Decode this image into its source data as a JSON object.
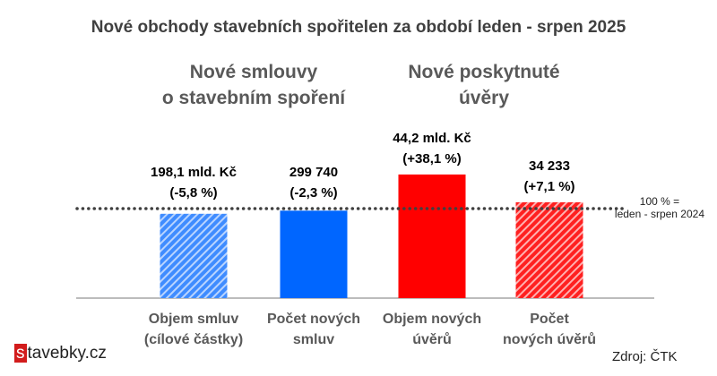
{
  "chart_data": {
    "type": "bar",
    "title": "Nové obchody stavebních spořitelen za období leden - srpen 2025",
    "groups": [
      {
        "label_lines": [
          "Nové smlouvy",
          "o stavebním spoření"
        ]
      },
      {
        "label_lines": [
          "Nové poskytnuté",
          "úvěry"
        ]
      }
    ],
    "categories": [
      [
        "Objem smluv",
        "(cílové částky)"
      ],
      [
        "Počet  nových",
        "smluv"
      ],
      [
        "Objem nových",
        "úvěrů"
      ],
      [
        "Počet",
        "nových úvěrů"
      ]
    ],
    "values_percent_of_reference": [
      94.2,
      97.7,
      138.1,
      107.1
    ],
    "data_labels": [
      [
        "198,1 mld. Kč",
        "(-5,8 %)"
      ],
      [
        "299 740",
        "(-2,3 %)"
      ],
      [
        "44,2 mld. Kč",
        "(+38,1 %)"
      ],
      [
        "34 233",
        "(+7,1 %)"
      ]
    ],
    "bar_styles": [
      "hatched",
      "solid",
      "solid",
      "hatched"
    ],
    "colors": [
      "#3f8cff",
      "#0066ff",
      "#ff0000",
      "#ff3b3b"
    ],
    "reference_line": {
      "value": 100,
      "label_lines": [
        "100 % =",
        "leden - srpen 2024"
      ],
      "style": "dotted"
    },
    "ylim": [
      0,
      150
    ],
    "grid": false
  },
  "footer": {
    "source": "Zdroj: ČTK",
    "logo_s": "s",
    "logo_rest": "tavebky.cz"
  }
}
